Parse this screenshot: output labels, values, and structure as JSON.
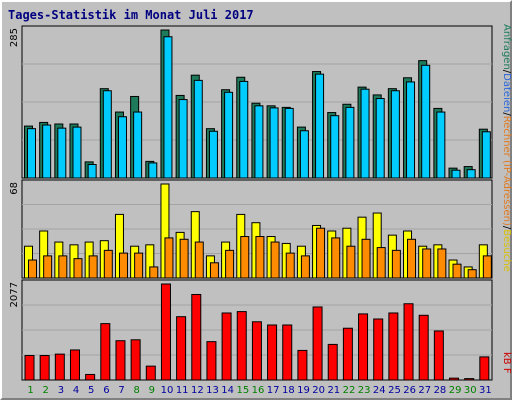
{
  "chart_data": [
    {
      "type": "bar",
      "title": "Tages-Statistik im Monat Juli 2017",
      "panel": "top",
      "ymax_label": "285",
      "categories": [
        "1",
        "2",
        "3",
        "4",
        "5",
        "6",
        "7",
        "8",
        "9",
        "10",
        "11",
        "12",
        "13",
        "14",
        "15",
        "16",
        "17",
        "18",
        "19",
        "20",
        "21",
        "22",
        "23",
        "24",
        "25",
        "26",
        "27",
        "28",
        "29",
        "30",
        "31"
      ],
      "weekend_days": [
        "1",
        "2",
        "8",
        "9",
        "15",
        "16",
        "22",
        "23",
        "29",
        "30"
      ],
      "series": [
        {
          "name": "Anfragen",
          "color": "#1e7a5a",
          "values": [
            100,
            107,
            104,
            104,
            31,
            172,
            127,
            157,
            32,
            285,
            159,
            198,
            95,
            170,
            194,
            144,
            139,
            136,
            98,
            205,
            126,
            142,
            175,
            160,
            172,
            193,
            226,
            134,
            19,
            22,
            94
          ]
        },
        {
          "name": "Dateien",
          "color": "#00ccff",
          "values": [
            95,
            102,
            96,
            98,
            26,
            168,
            118,
            127,
            29,
            272,
            151,
            188,
            90,
            165,
            186,
            139,
            135,
            134,
            91,
            200,
            120,
            136,
            171,
            153,
            168,
            185,
            217,
            127,
            15,
            16,
            89
          ]
        }
      ],
      "legend_right": [
        "Anfragen",
        "/",
        "Dateien",
        "/",
        "Rechner (IP-Adressen)",
        "/",
        "Besuche"
      ],
      "legend_colors": {
        "Anfragen": "#1e7a5a",
        "Dateien": "#2a66d8",
        "Rechner": "#e07a1f",
        "Besuche": "#d8c000"
      }
    },
    {
      "type": "bar",
      "panel": "middle",
      "ymax_label": "68",
      "categories": [
        "1",
        "2",
        "3",
        "4",
        "5",
        "6",
        "7",
        "8",
        "9",
        "10",
        "11",
        "12",
        "13",
        "14",
        "15",
        "16",
        "17",
        "18",
        "19",
        "20",
        "21",
        "22",
        "23",
        "24",
        "25",
        "26",
        "27",
        "28",
        "29",
        "30",
        "31"
      ],
      "series": [
        {
          "name": "Besuche",
          "color": "#ffff00",
          "values": [
            23,
            34,
            26,
            24,
            26,
            27,
            46,
            23,
            24,
            68,
            33,
            48,
            16,
            26,
            46,
            40,
            30,
            25,
            23,
            38,
            34,
            36,
            44,
            47,
            31,
            34,
            23,
            24,
            13,
            8,
            24
          ]
        },
        {
          "name": "Rechner (IP-Adressen)",
          "color": "#ff8c00",
          "values": [
            13,
            16,
            16,
            14,
            16,
            20,
            18,
            18,
            8,
            29,
            28,
            26,
            11,
            20,
            30,
            30,
            26,
            18,
            16,
            36,
            29,
            23,
            28,
            22,
            20,
            28,
            21,
            21,
            10,
            6,
            16
          ]
        }
      ]
    },
    {
      "type": "bar",
      "panel": "bottom",
      "ymax_label": "2077",
      "categories": [
        "1",
        "2",
        "3",
        "4",
        "5",
        "6",
        "7",
        "8",
        "9",
        "10",
        "11",
        "12",
        "13",
        "14",
        "15",
        "16",
        "17",
        "18",
        "19",
        "20",
        "21",
        "22",
        "23",
        "24",
        "25",
        "26",
        "27",
        "28",
        "29",
        "30",
        "31"
      ],
      "series": [
        {
          "name": "kB F",
          "color": "#ff0000",
          "values": [
            530,
            530,
            560,
            650,
            120,
            1220,
            850,
            870,
            300,
            2077,
            1370,
            1850,
            830,
            1450,
            1480,
            1260,
            1190,
            1190,
            640,
            1580,
            770,
            1120,
            1430,
            1320,
            1450,
            1650,
            1400,
            1060,
            40,
            30,
            500
          ]
        }
      ],
      "legend_right": [
        "kB F"
      ],
      "legend_color": "#cc0000"
    }
  ]
}
